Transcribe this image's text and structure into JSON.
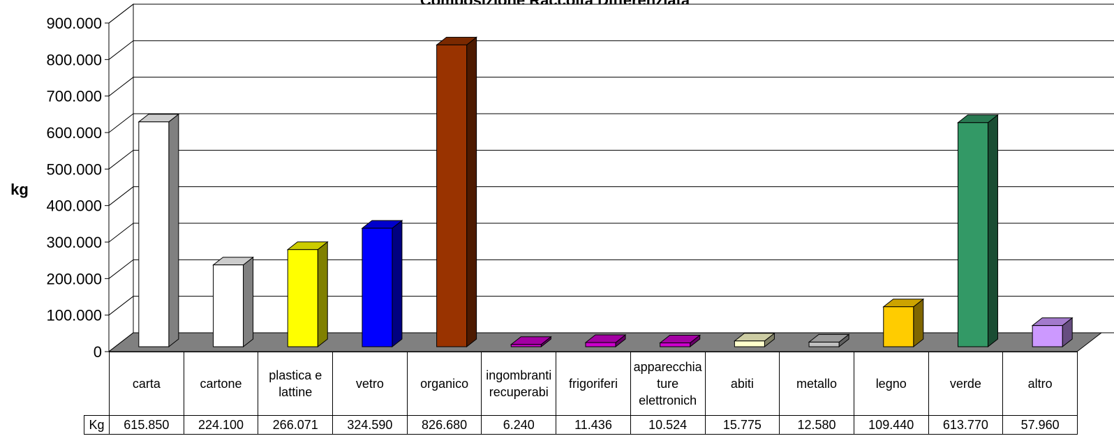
{
  "chart_data": {
    "type": "bar3d",
    "title": "Composizione Raccolta Differenziata",
    "y_label": "kg",
    "table_label": "Kg",
    "categories": [
      "carta",
      "cartone",
      "plastica e lattine",
      "vetro",
      "organico",
      "ingombranti recuperabi",
      "frigoriferi",
      "apparecchiature elettronich",
      "abiti",
      "metallo",
      "legno",
      "verde",
      "altro"
    ],
    "values": [
      615850,
      224100,
      266071,
      324590,
      826680,
      6240,
      11436,
      10524,
      15775,
      12580,
      109440,
      613770,
      57960
    ],
    "value_labels": [
      "615.850",
      "224.100",
      "266.071",
      "324.590",
      "826.680",
      "6.240",
      "11.436",
      "10.524",
      "15.775",
      "12.580",
      "109.440",
      "613.770",
      "57.960"
    ],
    "colors": [
      "#ffffff",
      "#ffffff",
      "#ffff00",
      "#0000ff",
      "#993300",
      "#cc00cc",
      "#cc00cc",
      "#cc00cc",
      "#ffffcc",
      "#c0c0c0",
      "#ffcc00",
      "#339966",
      "#cc99ff"
    ],
    "ylim": [
      0,
      900000
    ],
    "yticks": [
      0,
      {
        "value": 100000,
        "label": "100.000"
      },
      {
        "value": 200000,
        "label": "200.000"
      },
      {
        "value": 300000,
        "label": "300.000"
      },
      {
        "value": 400000,
        "label": "400.000"
      },
      {
        "value": 500000,
        "label": "500.000"
      },
      {
        "value": 600000,
        "label": "600.000"
      },
      {
        "value": 700000,
        "label": "700.000"
      },
      {
        "value": 800000,
        "label": "800.000"
      },
      {
        "value": 900000,
        "label": "900.000"
      }
    ],
    "grid": true
  }
}
